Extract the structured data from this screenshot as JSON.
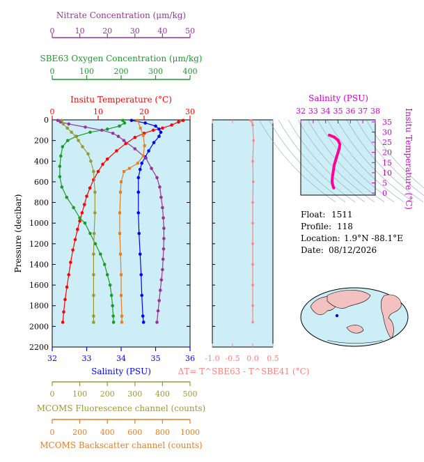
{
  "colors": {
    "temperature": "#ff0000",
    "salinity": "#0000ff",
    "oxygen": "#1a9a2a",
    "nitrate": "#993399",
    "fluorescence": "#999933",
    "backscatter": "#e67e22",
    "delta_t": "#ff8080",
    "ts_profile": "#ff0099",
    "plot_bg": "#cdeef6"
  },
  "chart_data": [
    {
      "type": "line",
      "name": "profile",
      "ylabel": "Pressure (decibar)",
      "ylim": [
        2200,
        0
      ],
      "yticks": [
        0,
        200,
        400,
        600,
        800,
        1000,
        1200,
        1400,
        1600,
        1800,
        2000,
        2200
      ],
      "grid": false,
      "axes": {
        "salinity": {
          "label": "Salinity (PSU)",
          "range": [
            32,
            36
          ],
          "ticks": [
            32,
            33,
            34,
            35,
            36
          ]
        },
        "temperature": {
          "label": "Insitu Temperature (°C)",
          "range": [
            0,
            30
          ],
          "ticks": [
            0,
            10,
            20,
            30
          ]
        },
        "oxygen": {
          "label": "SBE63 Oxygen Concentration (μm/kg)",
          "range": [
            0,
            400
          ],
          "ticks": [
            0,
            100,
            200,
            300,
            400
          ]
        },
        "nitrate": {
          "label": "Nitrate Concentration (μm/kg)",
          "range": [
            0,
            50
          ],
          "ticks": [
            0,
            10,
            20,
            30,
            40,
            50
          ]
        },
        "fluorescence": {
          "label": "MCOMS Fluorescence channel (counts)",
          "range": [
            0,
            500
          ],
          "ticks": [
            0,
            100,
            200,
            300,
            400,
            500
          ]
        },
        "backscatter": {
          "label": "MCOMS Backscatter channel (counts)",
          "range": [
            0,
            1000
          ],
          "ticks": [
            0,
            200,
            400,
            600,
            800,
            1000
          ]
        }
      },
      "series": [
        {
          "key": "temperature",
          "points": [
            [
              28.5,
              5
            ],
            [
              27.5,
              20
            ],
            [
              26,
              50
            ],
            [
              24,
              80
            ],
            [
              22,
              100
            ],
            [
              20,
              130
            ],
            [
              18,
              170
            ],
            [
              16,
              230
            ],
            [
              14,
              300
            ],
            [
              12,
              380
            ],
            [
              11,
              430
            ],
            [
              10,
              500
            ],
            [
              9,
              580
            ],
            [
              8.2,
              660
            ],
            [
              7.5,
              740
            ],
            [
              7,
              820
            ],
            [
              6.5,
              900
            ],
            [
              6,
              980
            ],
            [
              5.5,
              1060
            ],
            [
              5,
              1160
            ],
            [
              4.5,
              1260
            ],
            [
              4,
              1380
            ],
            [
              3.6,
              1500
            ],
            [
              3.2,
              1620
            ],
            [
              2.8,
              1740
            ],
            [
              2.5,
              1860
            ],
            [
              2.3,
              1960
            ]
          ]
        },
        {
          "key": "salinity",
          "points": [
            [
              34.3,
              5
            ],
            [
              34.7,
              30
            ],
            [
              35.0,
              60
            ],
            [
              35.1,
              90
            ],
            [
              35.15,
              120
            ],
            [
              35.1,
              160
            ],
            [
              34.95,
              220
            ],
            [
              34.8,
              300
            ],
            [
              34.7,
              360
            ],
            [
              34.6,
              420
            ],
            [
              34.55,
              480
            ],
            [
              34.5,
              560
            ],
            [
              34.5,
              700
            ],
            [
              34.5,
              900
            ],
            [
              34.52,
              1100
            ],
            [
              34.55,
              1300
            ],
            [
              34.58,
              1500
            ],
            [
              34.6,
              1700
            ],
            [
              34.63,
              1900
            ],
            [
              34.65,
              1960
            ]
          ]
        },
        {
          "key": "oxygen",
          "points": [
            [
              205,
              5
            ],
            [
              210,
              30
            ],
            [
              195,
              60
            ],
            [
              160,
              90
            ],
            [
              110,
              120
            ],
            [
              70,
              160
            ],
            [
              45,
              200
            ],
            [
              30,
              260
            ],
            [
              25,
              350
            ],
            [
              22,
              450
            ],
            [
              22,
              550
            ],
            [
              28,
              650
            ],
            [
              42,
              750
            ],
            [
              62,
              850
            ],
            [
              80,
              950
            ],
            [
              95,
              1000
            ],
            [
              110,
              1100
            ],
            [
              125,
              1200
            ],
            [
              140,
              1300
            ],
            [
              152,
              1400
            ],
            [
              160,
              1500
            ],
            [
              168,
              1600
            ],
            [
              172,
              1700
            ],
            [
              175,
              1800
            ],
            [
              177,
              1900
            ],
            [
              178,
              1960
            ]
          ]
        },
        {
          "key": "nitrate",
          "points": [
            [
              2,
              5
            ],
            [
              3,
              20
            ],
            [
              6,
              40
            ],
            [
              12,
              70
            ],
            [
              18,
              100
            ],
            [
              22,
              130
            ],
            [
              24,
              160
            ],
            [
              26,
              200
            ],
            [
              30,
              280
            ],
            [
              34,
              370
            ],
            [
              36,
              470
            ],
            [
              38,
              560
            ],
            [
              39,
              650
            ],
            [
              39.5,
              750
            ],
            [
              40,
              850
            ],
            [
              40.3,
              950
            ],
            [
              40.5,
              1050
            ],
            [
              40.5,
              1150
            ],
            [
              40.4,
              1250
            ],
            [
              40.2,
              1350
            ],
            [
              40,
              1450
            ],
            [
              39.6,
              1550
            ],
            [
              39.2,
              1650
            ],
            [
              38.8,
              1750
            ],
            [
              38.4,
              1850
            ],
            [
              38,
              1960
            ]
          ]
        },
        {
          "key": "fluorescence",
          "points": [
            [
              35,
              5
            ],
            [
              40,
              40
            ],
            [
              55,
              80
            ],
            [
              70,
              120
            ],
            [
              85,
              160
            ],
            [
              95,
              200
            ],
            [
              110,
              260
            ],
            [
              130,
              330
            ],
            [
              140,
              400
            ],
            [
              150,
              500
            ],
            [
              155,
              700
            ],
            [
              155,
              900
            ],
            [
              152,
              1100
            ],
            [
              150,
              1300
            ],
            [
              150,
              1500
            ],
            [
              150,
              1700
            ],
            [
              150,
              1900
            ],
            [
              150,
              1960
            ]
          ]
        },
        {
          "key": "backscatter",
          "points": [
            [
              620,
              5
            ],
            [
              640,
              80
            ],
            [
              660,
              150
            ],
            [
              670,
              250
            ],
            [
              660,
              350
            ],
            [
              620,
              420
            ],
            [
              560,
              470
            ],
            [
              520,
              500
            ],
            [
              500,
              600
            ],
            [
              495,
              700
            ],
            [
              490,
              900
            ],
            [
              490,
              1100
            ],
            [
              495,
              1300
            ],
            [
              500,
              1500
            ],
            [
              500,
              1700
            ],
            [
              505,
              1900
            ],
            [
              505,
              1960
            ]
          ]
        }
      ]
    },
    {
      "type": "line",
      "name": "delta_t",
      "xlabel": "ΔT= T^SBE63 - T^SBE41 (°C)",
      "xlim": [
        -1.0,
        0.5
      ],
      "xticks": [
        -1.0,
        -0.5,
        0.0,
        0.5
      ],
      "ylim": [
        2200,
        0
      ],
      "points": [
        [
          -0.05,
          5
        ],
        [
          0.0,
          50
        ],
        [
          0.02,
          200
        ],
        [
          0.0,
          400
        ],
        [
          0.01,
          600
        ],
        [
          0.0,
          800
        ],
        [
          0.0,
          1000
        ],
        [
          0.0,
          1200
        ],
        [
          0.0,
          1400
        ],
        [
          0.0,
          1600
        ],
        [
          0.0,
          1800
        ],
        [
          0.0,
          1960
        ]
      ]
    },
    {
      "type": "scatter",
      "name": "ts_diagram",
      "xlabel": "Salinity (PSU)",
      "ylabel": "Insitu Temperature (°C)",
      "xlim": [
        32,
        38
      ],
      "ylim": [
        -1,
        36
      ],
      "xticks": [
        32,
        33,
        34,
        35,
        36,
        37,
        38
      ],
      "yticks": [
        0,
        5,
        10,
        15,
        20,
        25,
        30,
        35
      ],
      "points": [
        [
          34.3,
          28.5
        ],
        [
          34.7,
          27.5
        ],
        [
          35.0,
          26
        ],
        [
          35.15,
          24
        ],
        [
          35.1,
          22
        ],
        [
          35.0,
          20
        ],
        [
          34.9,
          18
        ],
        [
          34.8,
          16
        ],
        [
          34.7,
          14
        ],
        [
          34.65,
          12
        ],
        [
          34.6,
          10
        ],
        [
          34.55,
          8
        ],
        [
          34.52,
          6
        ],
        [
          34.55,
          4.5
        ],
        [
          34.6,
          3.5
        ],
        [
          34.65,
          2.5
        ]
      ]
    }
  ],
  "info": {
    "float_label": "Float:",
    "float_value": "1511",
    "profile_label": "Profile:",
    "profile_value": "118",
    "location_label": "Location:",
    "location_value": "1.9°N  -88.1°E",
    "date_label": "Date:",
    "date_value": "08/12/2026"
  }
}
